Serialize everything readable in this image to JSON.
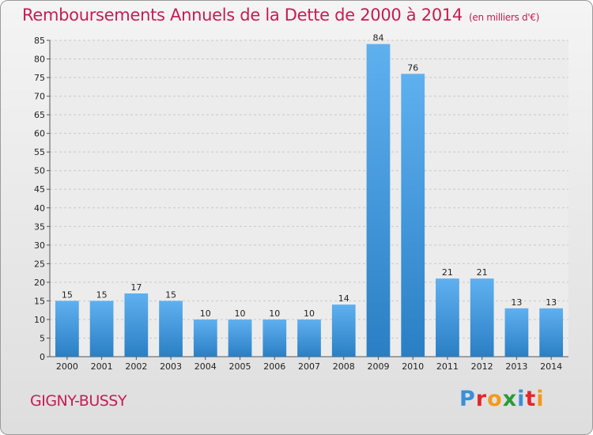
{
  "header": {
    "title": "Remboursements Annuels de la Dette de 2000 à 2014",
    "unit": "(en milliers d'€)"
  },
  "footer": {
    "commune": "GIGNY-BUSSY",
    "logo": [
      "P",
      "r",
      "o",
      "x",
      "i",
      "t",
      "i"
    ]
  },
  "colors": {
    "title": "#c41d53",
    "bar_top": "#5fb0ef",
    "bar_bottom": "#2a7fc4",
    "logo": [
      "#3a8fd6",
      "#e0282e",
      "#f29a1a",
      "#2a9a3a",
      "#3a8fd6",
      "#e0282e",
      "#f29a1a"
    ]
  },
  "chart_data": {
    "type": "bar",
    "title": "Remboursements Annuels de la Dette de 2000 à 2014",
    "categories": [
      "2000",
      "2001",
      "2002",
      "2003",
      "2004",
      "2005",
      "2006",
      "2007",
      "2008",
      "2009",
      "2010",
      "2011",
      "2012",
      "2013",
      "2014"
    ],
    "values": [
      15,
      15,
      17,
      15,
      10,
      10,
      10,
      10,
      14,
      84,
      76,
      21,
      21,
      13,
      13
    ],
    "ylim": [
      0,
      85
    ],
    "yticks": [
      0,
      5,
      10,
      15,
      20,
      25,
      30,
      35,
      40,
      45,
      50,
      55,
      60,
      65,
      70,
      75,
      80,
      85
    ],
    "grid": true
  }
}
